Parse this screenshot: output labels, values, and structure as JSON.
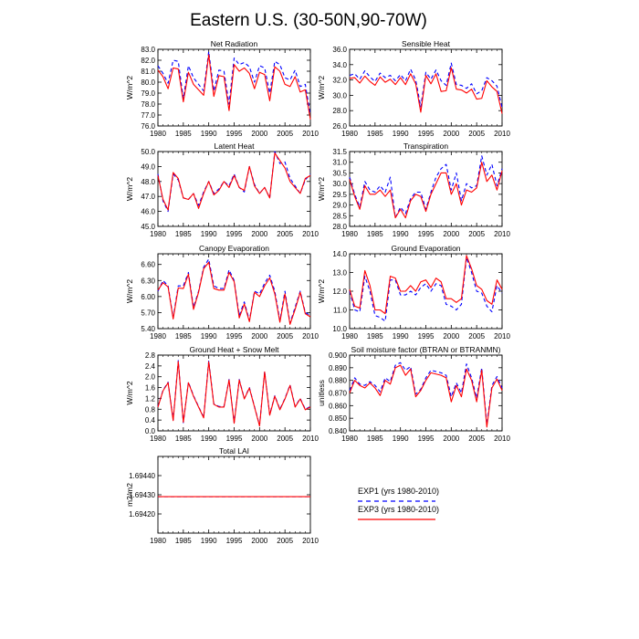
{
  "page": {
    "title": "Eastern U.S. (30-50N,90-70W)"
  },
  "colors": {
    "exp1": "#0000ff",
    "exp3": "#ff0000",
    "axis": "#000000"
  },
  "legend": {
    "entries": [
      {
        "label": "EXP1 (yrs 1980-2010)",
        "style": "dashed",
        "color": "#0000ff"
      },
      {
        "label": "EXP3 (yrs 1980-2010)",
        "style": "solid",
        "color": "#ff0000"
      }
    ]
  },
  "chart_data": [
    {
      "type": "line",
      "title": "Net Radiation",
      "ylabel": "W/m^2",
      "xlim": [
        1980,
        2010
      ],
      "ylim": [
        76.0,
        83.0
      ],
      "xticks": [
        "1980",
        "1985",
        "1990",
        "1995",
        "2000",
        "2005",
        "2010"
      ],
      "yticks": [
        "76.0",
        "77.0",
        "78.0",
        "79.0",
        "80.0",
        "81.0",
        "82.0",
        "83.0"
      ],
      "x": [
        1980,
        1981,
        1982,
        1983,
        1984,
        1985,
        1986,
        1987,
        1988,
        1989,
        1990,
        1991,
        1992,
        1993,
        1994,
        1995,
        1996,
        1997,
        1998,
        1999,
        2000,
        2001,
        2002,
        2003,
        2004,
        2005,
        2006,
        2007,
        2008,
        2009,
        2010
      ],
      "series": [
        {
          "name": "EXP1",
          "values": [
            81.5,
            80.8,
            79.9,
            82.0,
            81.9,
            78.5,
            81.5,
            80.4,
            79.8,
            79.2,
            82.8,
            79.2,
            81.1,
            81.0,
            78.0,
            82.2,
            81.6,
            81.8,
            81.4,
            80.0,
            81.5,
            81.3,
            79.0,
            81.9,
            81.6,
            80.4,
            80.2,
            81.1,
            79.6,
            79.8,
            77.0
          ]
        },
        {
          "name": "EXP3",
          "values": [
            81.1,
            80.5,
            79.4,
            81.3,
            81.2,
            78.2,
            80.9,
            79.8,
            79.3,
            78.8,
            82.5,
            78.7,
            80.6,
            80.5,
            77.4,
            81.6,
            81.0,
            81.3,
            80.8,
            79.4,
            80.9,
            80.7,
            78.3,
            81.4,
            81.0,
            79.8,
            79.6,
            80.5,
            79.1,
            79.3,
            76.6
          ]
        }
      ]
    },
    {
      "type": "line",
      "title": "Sensible Heat",
      "ylabel": "W/m^2",
      "xlim": [
        1980,
        2010
      ],
      "ylim": [
        26.0,
        36.0
      ],
      "xticks": [
        "1980",
        "1985",
        "1990",
        "1995",
        "2000",
        "2005",
        "2010"
      ],
      "yticks": [
        "26.0",
        "28.0",
        "30.0",
        "32.0",
        "34.0",
        "36.0"
      ],
      "x": [
        1980,
        1981,
        1982,
        1983,
        1984,
        1985,
        1986,
        1987,
        1988,
        1989,
        1990,
        1991,
        1992,
        1993,
        1994,
        1995,
        1996,
        1997,
        1998,
        1999,
        2000,
        2001,
        2002,
        2003,
        2004,
        2005,
        2006,
        2007,
        2008,
        2009,
        2010
      ],
      "series": [
        {
          "name": "EXP1",
          "values": [
            32.6,
            32.8,
            32.1,
            33.2,
            32.4,
            31.8,
            32.9,
            32.3,
            32.6,
            31.9,
            32.7,
            31.9,
            33.4,
            32.0,
            28.5,
            33.0,
            32.1,
            33.3,
            31.9,
            31.3,
            34.2,
            31.4,
            31.3,
            30.9,
            31.5,
            30.2,
            30.6,
            32.3,
            31.9,
            31.2,
            28.4
          ]
        },
        {
          "name": "EXP3",
          "values": [
            32.2,
            32.3,
            31.6,
            32.5,
            31.8,
            31.3,
            32.4,
            31.7,
            32.1,
            31.4,
            32.3,
            31.4,
            32.8,
            31.5,
            27.8,
            32.6,
            31.5,
            32.8,
            30.5,
            30.6,
            33.6,
            30.8,
            30.7,
            30.3,
            30.8,
            29.5,
            29.6,
            31.9,
            31.1,
            30.5,
            27.6
          ]
        }
      ]
    },
    {
      "type": "line",
      "title": "Latent Heat",
      "ylabel": "W/m^2",
      "xlim": [
        1980,
        2010
      ],
      "ylim": [
        45.0,
        50.0
      ],
      "xticks": [
        "1980",
        "1985",
        "1990",
        "1995",
        "2000",
        "2005",
        "2010"
      ],
      "yticks": [
        "45.0",
        "46.0",
        "47.0",
        "48.0",
        "49.0",
        "50.0"
      ],
      "x": [
        1980,
        1981,
        1982,
        1983,
        1984,
        1985,
        1986,
        1987,
        1988,
        1989,
        1990,
        1991,
        1992,
        1993,
        1994,
        1995,
        1996,
        1997,
        1998,
        1999,
        2000,
        2001,
        2002,
        2003,
        2004,
        2005,
        2006,
        2007,
        2008,
        2009,
        2010
      ],
      "series": [
        {
          "name": "EXP1",
          "values": [
            48.5,
            46.7,
            46.0,
            48.5,
            48.1,
            46.9,
            46.8,
            47.2,
            46.4,
            47.3,
            48.0,
            47.2,
            47.5,
            48.0,
            47.7,
            48.5,
            47.6,
            47.3,
            49.0,
            47.8,
            47.2,
            47.6,
            46.9,
            50.0,
            49.2,
            49.3,
            48.2,
            47.7,
            47.2,
            48.1,
            48.5
          ]
        },
        {
          "name": "EXP3",
          "values": [
            48.4,
            46.8,
            46.1,
            48.6,
            48.2,
            46.9,
            46.8,
            47.2,
            46.2,
            47.2,
            48.0,
            47.1,
            47.4,
            48.0,
            47.6,
            48.4,
            47.6,
            47.4,
            49.0,
            47.7,
            47.2,
            47.6,
            46.9,
            49.9,
            49.4,
            48.9,
            48.0,
            47.6,
            47.2,
            48.2,
            48.4
          ]
        }
      ]
    },
    {
      "type": "line",
      "title": "Transpiration",
      "ylabel": "W/m^2",
      "xlim": [
        1980,
        2010
      ],
      "ylim": [
        28.0,
        31.5
      ],
      "xticks": [
        "1980",
        "1985",
        "1990",
        "1995",
        "2000",
        "2005",
        "2010"
      ],
      "yticks": [
        "28.0",
        "28.5",
        "29.0",
        "29.5",
        "30.0",
        "30.5",
        "31.0",
        "31.5"
      ],
      "x": [
        1980,
        1981,
        1982,
        1983,
        1984,
        1985,
        1986,
        1987,
        1988,
        1989,
        1990,
        1991,
        1992,
        1993,
        1994,
        1995,
        1996,
        1997,
        1998,
        1999,
        2000,
        2001,
        2002,
        2003,
        2004,
        2005,
        2006,
        2007,
        2008,
        2009,
        2010
      ],
      "series": [
        {
          "name": "EXP1",
          "values": [
            30.3,
            29.5,
            28.9,
            30.1,
            29.7,
            29.6,
            29.9,
            29.6,
            30.3,
            28.4,
            28.9,
            28.6,
            29.3,
            29.6,
            29.6,
            28.8,
            29.6,
            30.3,
            30.7,
            30.9,
            29.7,
            30.5,
            29.2,
            30.0,
            29.8,
            29.9,
            31.3,
            30.4,
            30.9,
            29.9,
            30.7
          ]
        },
        {
          "name": "EXP3",
          "values": [
            30.2,
            29.4,
            28.8,
            29.9,
            29.5,
            29.5,
            29.7,
            29.4,
            29.7,
            28.4,
            28.8,
            28.4,
            29.2,
            29.5,
            29.4,
            28.7,
            29.5,
            30.0,
            30.5,
            30.5,
            29.5,
            30.0,
            29.0,
            29.7,
            29.6,
            29.8,
            31.0,
            30.1,
            30.4,
            29.7,
            30.6
          ]
        }
      ]
    },
    {
      "type": "line",
      "title": "Canopy Evaporation",
      "ylabel": "W/m^2",
      "xlim": [
        1980,
        2010
      ],
      "ylim": [
        5.4,
        6.8
      ],
      "xticks": [
        "1980",
        "1985",
        "1990",
        "1995",
        "2000",
        "2005",
        "2010"
      ],
      "yticks": [
        "5.40",
        "5.70",
        "6.00",
        "6.30",
        "6.60"
      ],
      "x": [
        1980,
        1981,
        1982,
        1983,
        1984,
        1985,
        1986,
        1987,
        1988,
        1989,
        1990,
        1991,
        1992,
        1993,
        1994,
        1995,
        1996,
        1997,
        1998,
        1999,
        2000,
        2001,
        2002,
        2003,
        2004,
        2005,
        2006,
        2007,
        2008,
        2009,
        2010
      ],
      "series": [
        {
          "name": "EXP1",
          "values": [
            6.1,
            6.3,
            6.2,
            5.6,
            6.2,
            6.2,
            6.45,
            5.8,
            6.1,
            6.55,
            6.7,
            6.2,
            6.15,
            6.15,
            6.5,
            6.3,
            5.65,
            5.9,
            5.55,
            6.1,
            6.05,
            6.25,
            6.4,
            6.1,
            5.55,
            6.1,
            5.5,
            5.8,
            6.1,
            5.7,
            5.65
          ]
        },
        {
          "name": "EXP3",
          "values": [
            6.12,
            6.26,
            6.18,
            5.58,
            6.16,
            6.15,
            6.42,
            5.76,
            6.08,
            6.52,
            6.64,
            6.15,
            6.12,
            6.12,
            6.45,
            6.28,
            5.6,
            5.86,
            5.53,
            6.08,
            6.0,
            6.2,
            6.35,
            6.05,
            5.52,
            6.05,
            5.48,
            5.76,
            6.08,
            5.68,
            5.62
          ]
        }
      ]
    },
    {
      "type": "line",
      "title": "Ground Evaporation",
      "ylabel": "W/m^2",
      "xlim": [
        1980,
        2010
      ],
      "ylim": [
        10.0,
        14.0
      ],
      "xticks": [
        "1980",
        "1985",
        "1990",
        "1995",
        "2000",
        "2005",
        "2010"
      ],
      "yticks": [
        "10.0",
        "11.0",
        "12.0",
        "13.0",
        "14.0"
      ],
      "x": [
        1980,
        1981,
        1982,
        1983,
        1984,
        1985,
        1986,
        1987,
        1988,
        1989,
        1990,
        1991,
        1992,
        1993,
        1994,
        1995,
        1996,
        1997,
        1998,
        1999,
        2000,
        2001,
        2002,
        2003,
        2004,
        2005,
        2006,
        2007,
        2008,
        2009,
        2010
      ],
      "series": [
        {
          "name": "EXP1",
          "values": [
            12.0,
            11.0,
            10.9,
            12.8,
            12.0,
            10.7,
            10.6,
            10.4,
            12.6,
            12.6,
            11.8,
            11.8,
            12.0,
            11.8,
            12.2,
            12.4,
            12.0,
            12.4,
            12.3,
            11.3,
            11.2,
            11.0,
            11.3,
            13.8,
            13.0,
            12.0,
            11.9,
            11.2,
            10.9,
            12.3,
            11.9
          ]
        },
        {
          "name": "EXP3",
          "values": [
            12.1,
            11.2,
            11.1,
            13.1,
            12.3,
            11.0,
            11.0,
            10.8,
            12.8,
            12.7,
            12.0,
            12.0,
            12.3,
            12.0,
            12.5,
            12.6,
            12.2,
            12.7,
            12.5,
            11.6,
            11.6,
            11.4,
            11.6,
            13.9,
            13.2,
            12.3,
            12.1,
            11.5,
            11.3,
            12.6,
            12.1
          ]
        }
      ]
    },
    {
      "type": "line",
      "title": "Ground Heat + Snow Melt",
      "ylabel": "W/m^2",
      "xlim": [
        1980,
        2010
      ],
      "ylim": [
        0.0,
        2.8
      ],
      "xticks": [
        "1980",
        "1985",
        "1990",
        "1995",
        "2000",
        "2005",
        "2010"
      ],
      "yticks": [
        "0.0",
        "0.4",
        "0.8",
        "1.2",
        "1.6",
        "2.0",
        "2.4",
        "2.8"
      ],
      "x": [
        1980,
        1981,
        1982,
        1983,
        1984,
        1985,
        1986,
        1987,
        1988,
        1989,
        1990,
        1991,
        1992,
        1993,
        1994,
        1995,
        1996,
        1997,
        1998,
        1999,
        2000,
        2001,
        2002,
        2003,
        2004,
        2005,
        2006,
        2007,
        2008,
        2009,
        2010
      ],
      "series": [
        {
          "name": "EXP1",
          "values": [
            0.9,
            1.5,
            1.8,
            0.4,
            2.6,
            0.3,
            1.8,
            1.3,
            0.9,
            0.5,
            2.6,
            1.0,
            0.9,
            0.9,
            1.9,
            0.3,
            1.9,
            1.2,
            1.6,
            0.9,
            0.2,
            2.2,
            0.6,
            1.3,
            0.8,
            1.2,
            1.7,
            0.9,
            1.2,
            0.8,
            0.9
          ]
        },
        {
          "name": "EXP3",
          "values": [
            0.88,
            1.48,
            1.78,
            0.38,
            2.56,
            0.32,
            1.78,
            1.28,
            0.88,
            0.48,
            2.55,
            0.98,
            0.88,
            0.88,
            1.88,
            0.28,
            1.88,
            1.18,
            1.58,
            0.88,
            0.18,
            2.18,
            0.58,
            1.28,
            0.78,
            1.18,
            1.68,
            0.88,
            1.18,
            0.78,
            0.88
          ]
        }
      ]
    },
    {
      "type": "line",
      "title": "Soil moisture factor (BTRAN or BTRANMN)",
      "ylabel": "unitless",
      "xlim": [
        1980,
        2010
      ],
      "ylim": [
        0.84,
        0.9
      ],
      "xticks": [
        "1980",
        "1985",
        "1990",
        "1995",
        "2000",
        "2005",
        "2010"
      ],
      "yticks": [
        "0.840",
        "0.850",
        "0.860",
        "0.870",
        "0.880",
        "0.890",
        "0.900"
      ],
      "x": [
        1980,
        1981,
        1982,
        1983,
        1984,
        1985,
        1986,
        1987,
        1988,
        1989,
        1990,
        1991,
        1992,
        1993,
        1994,
        1995,
        1996,
        1997,
        1998,
        1999,
        2000,
        2001,
        2002,
        2003,
        2004,
        2005,
        2006,
        2007,
        2008,
        2009,
        2010
      ],
      "series": [
        {
          "name": "EXP1",
          "values": [
            0.872,
            0.882,
            0.877,
            0.876,
            0.879,
            0.876,
            0.871,
            0.882,
            0.879,
            0.892,
            0.894,
            0.888,
            0.891,
            0.869,
            0.873,
            0.882,
            0.888,
            0.887,
            0.886,
            0.884,
            0.867,
            0.878,
            0.87,
            0.893,
            0.882,
            0.866,
            0.89,
            0.845,
            0.876,
            0.883,
            0.874
          ]
        },
        {
          "name": "EXP3",
          "values": [
            0.87,
            0.88,
            0.876,
            0.874,
            0.878,
            0.874,
            0.868,
            0.88,
            0.877,
            0.89,
            0.892,
            0.884,
            0.889,
            0.867,
            0.872,
            0.88,
            0.886,
            0.885,
            0.884,
            0.882,
            0.863,
            0.876,
            0.867,
            0.889,
            0.88,
            0.863,
            0.888,
            0.843,
            0.874,
            0.881,
            0.872
          ]
        }
      ]
    },
    {
      "type": "line",
      "title": "Total LAI",
      "ylabel": "m2/m2",
      "xlim": [
        1980,
        2010
      ],
      "ylim": [
        1.6941,
        1.6945
      ],
      "xticks": [
        "1980",
        "1985",
        "1990",
        "1995",
        "2000",
        "2005",
        "2010"
      ],
      "yticks": [
        "1.69420",
        "1.69430",
        "1.69440"
      ],
      "x": [
        1980,
        2010
      ],
      "series": [
        {
          "name": "EXP1",
          "values": [
            1.69429,
            1.69429
          ]
        },
        {
          "name": "EXP3",
          "values": [
            1.69429,
            1.69429
          ]
        }
      ]
    }
  ]
}
